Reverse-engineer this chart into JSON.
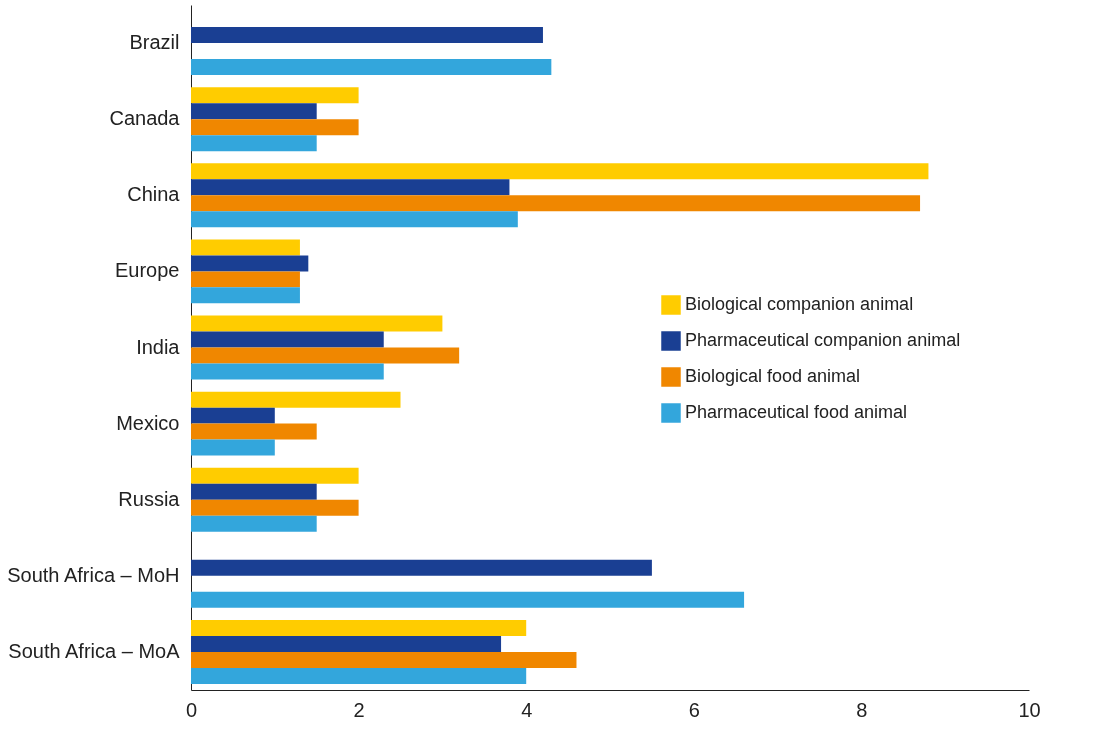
{
  "chart_data": {
    "type": "bar",
    "orientation": "horizontal",
    "categories": [
      "Brazil",
      "Canada",
      "China",
      "Europe",
      "India",
      "Mexico",
      "Russia",
      "South Africa – MoH",
      "South Africa – MoA"
    ],
    "series": [
      {
        "name": "Biological companion animal",
        "color": "#ffcc00",
        "values": [
          null,
          2.0,
          8.8,
          1.3,
          3.0,
          2.5,
          2.0,
          null,
          4.0
        ]
      },
      {
        "name": "Pharmaceutical companion animal",
        "color": "#1a3f93",
        "values": [
          4.2,
          1.5,
          3.8,
          1.4,
          2.3,
          1.0,
          1.5,
          5.5,
          3.7
        ]
      },
      {
        "name": "Biological food animal",
        "color": "#f08700",
        "values": [
          null,
          2.0,
          8.7,
          1.3,
          3.2,
          1.5,
          2.0,
          null,
          4.6
        ]
      },
      {
        "name": "Pharmaceutical food animal",
        "color": "#33a6dc",
        "values": [
          4.3,
          1.5,
          3.9,
          1.3,
          2.3,
          1.0,
          1.5,
          6.6,
          4.0
        ]
      }
    ],
    "xlim": [
      0,
      10
    ],
    "xticks": [
      0,
      2,
      4,
      6,
      8,
      10
    ],
    "grid": false,
    "legend": "right"
  }
}
